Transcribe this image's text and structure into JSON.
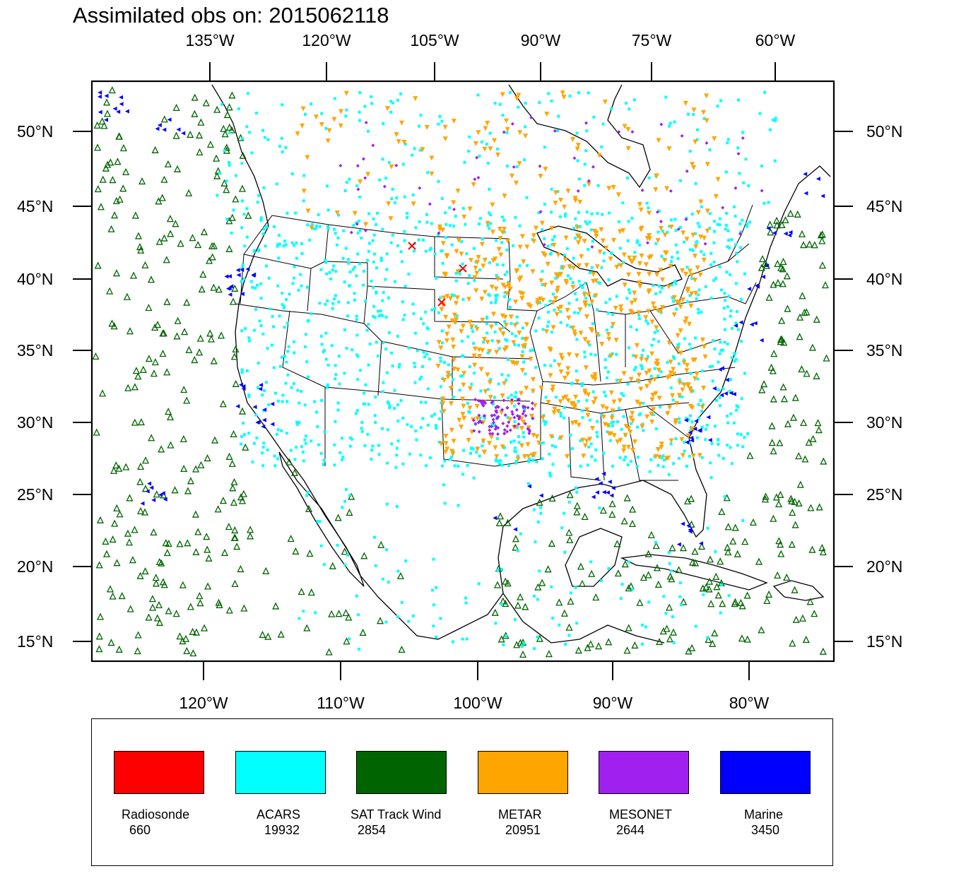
{
  "title": "Assimilated obs on: 2015062118",
  "top_axis": [
    "135°W",
    "120°W",
    "105°W",
    "90°W",
    "75°W",
    "60°W"
  ],
  "bottom_axis": [
    "120°W",
    "110°W",
    "100°W",
    "90°W",
    "80°W"
  ],
  "left_axis": [
    "50°N",
    "45°N",
    "40°N",
    "35°N",
    "30°N",
    "25°N",
    "20°N",
    "15°N"
  ],
  "right_axis": [
    "50°N",
    "45°N",
    "40°N",
    "35°N",
    "30°N",
    "25°N",
    "20°N",
    "15°N"
  ],
  "legend": [
    {
      "label": "Radiosonde",
      "count": "660",
      "color": "#ff0000"
    },
    {
      "label": "ACARS",
      "count": "19932",
      "color": "#00ffff"
    },
    {
      "label": "SAT Track Wind",
      "count": "2854",
      "color": "#006400"
    },
    {
      "label": "METAR",
      "count": "20951",
      "color": "#ffa500"
    },
    {
      "label": "MESONET",
      "count": "2644",
      "color": "#a020f0"
    },
    {
      "label": "Marine",
      "count": "3450",
      "color": "#0000ff"
    }
  ]
}
